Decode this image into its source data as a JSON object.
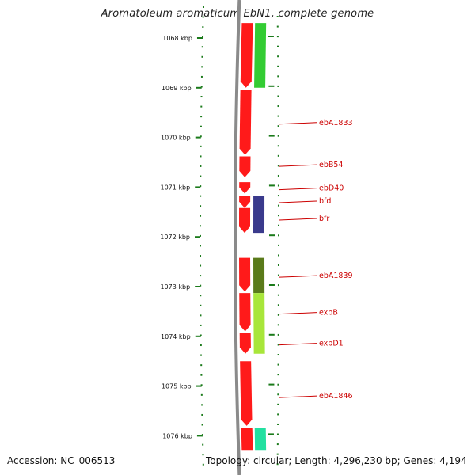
{
  "title": "Aromatoleum aromaticum EbN1, complete genome",
  "accession": "Accession: NC_006513",
  "summary": "Topology: circular; Length: 4,296,230 bp; Genes: 4,194",
  "ruler": {
    "start_kbp": 1067.7,
    "end_kbp": 1076.3,
    "ticks": [
      {
        "value": 1068,
        "label": "1068 kbp"
      },
      {
        "value": 1069,
        "label": "1069 kbp"
      },
      {
        "value": 1070,
        "label": "1070 kbp"
      },
      {
        "value": 1071,
        "label": "1071 kbp"
      },
      {
        "value": 1072,
        "label": "1072 kbp"
      },
      {
        "value": 1073,
        "label": "1073 kbp"
      },
      {
        "value": 1074,
        "label": "1074 kbp"
      },
      {
        "value": 1075,
        "label": "1075 kbp"
      },
      {
        "value": 1076,
        "label": "1076 kbp"
      }
    ]
  },
  "colors": {
    "backbone": "#8a8a8a",
    "cds": "#ff1a1a",
    "tick": "#1a7a1a",
    "label": "#cc0000",
    "cog_green": "#33cc33",
    "cog_navy": "#3a3a8c",
    "cog_olive": "#5a7a1a",
    "cog_lime": "#a8e63a",
    "cog_mint": "#22e0a0"
  },
  "cds": [
    {
      "start_kbp": 1067.7,
      "end_kbp": 1069.0,
      "arrow": true
    },
    {
      "start_kbp": 1069.05,
      "end_kbp": 1070.35,
      "arrow": true
    },
    {
      "start_kbp": 1070.38,
      "end_kbp": 1070.8,
      "arrow": true
    },
    {
      "start_kbp": 1070.9,
      "end_kbp": 1071.13,
      "arrow": true
    },
    {
      "start_kbp": 1071.18,
      "end_kbp": 1071.42,
      "arrow": true
    },
    {
      "start_kbp": 1071.42,
      "end_kbp": 1071.92,
      "arrow": true
    },
    {
      "start_kbp": 1072.42,
      "end_kbp": 1073.1,
      "arrow": true
    },
    {
      "start_kbp": 1073.13,
      "end_kbp": 1073.9,
      "arrow": true
    },
    {
      "start_kbp": 1073.93,
      "end_kbp": 1074.35,
      "arrow": true
    },
    {
      "start_kbp": 1074.5,
      "end_kbp": 1075.8,
      "arrow": true
    },
    {
      "start_kbp": 1075.85,
      "end_kbp": 1076.3,
      "arrow": false
    }
  ],
  "cog": [
    {
      "start_kbp": 1067.7,
      "end_kbp": 1069.0,
      "color": "#33cc33"
    },
    {
      "start_kbp": 1071.18,
      "end_kbp": 1071.92,
      "color": "#3a3a8c"
    },
    {
      "start_kbp": 1072.42,
      "end_kbp": 1073.13,
      "color": "#5a7a1a"
    },
    {
      "start_kbp": 1073.13,
      "end_kbp": 1074.35,
      "color": "#a8e63a"
    },
    {
      "start_kbp": 1075.85,
      "end_kbp": 1076.3,
      "color": "#22e0a0"
    }
  ],
  "gene_labels": [
    {
      "name": "ebA1833",
      "pos_kbp": 1069.7
    },
    {
      "name": "ebB54",
      "pos_kbp": 1070.55
    },
    {
      "name": "ebD40",
      "pos_kbp": 1071.02
    },
    {
      "name": "bfd",
      "pos_kbp": 1071.28
    },
    {
      "name": "bfr",
      "pos_kbp": 1071.63
    },
    {
      "name": "ebA1839",
      "pos_kbp": 1072.78
    },
    {
      "name": "exbB",
      "pos_kbp": 1073.52
    },
    {
      "name": "exbD1",
      "pos_kbp": 1074.14
    },
    {
      "name": "ebA1846",
      "pos_kbp": 1075.2
    }
  ]
}
